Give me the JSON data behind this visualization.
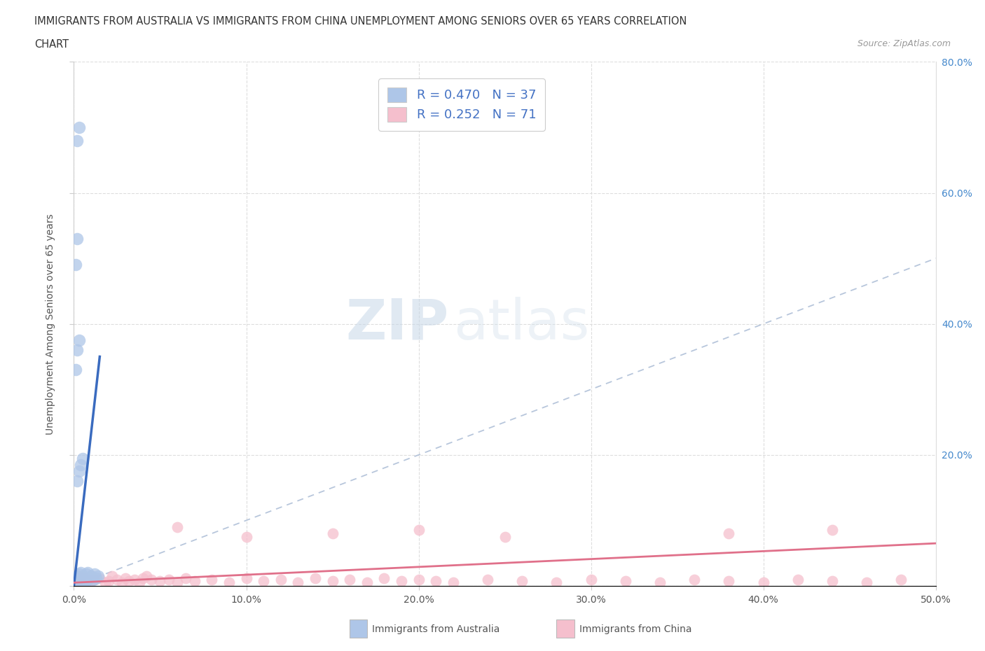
{
  "title_line1": "IMMIGRANTS FROM AUSTRALIA VS IMMIGRANTS FROM CHINA UNEMPLOYMENT AMONG SENIORS OVER 65 YEARS CORRELATION",
  "title_line2": "CHART",
  "source_text": "Source: ZipAtlas.com",
  "ylabel": "Unemployment Among Seniors over 65 years",
  "xlim": [
    0.0,
    0.5
  ],
  "ylim": [
    0.0,
    0.8
  ],
  "xticks": [
    0.0,
    0.1,
    0.2,
    0.3,
    0.4,
    0.5
  ],
  "yticks": [
    0.0,
    0.2,
    0.4,
    0.6,
    0.8
  ],
  "xticklabels": [
    "0.0%",
    "10.0%",
    "20.0%",
    "30.0%",
    "40.0%",
    "50.0%"
  ],
  "yticklabels_right": [
    "",
    "20.0%",
    "40.0%",
    "60.0%",
    "80.0%"
  ],
  "australia_R": 0.47,
  "australia_N": 37,
  "china_R": 0.252,
  "china_N": 71,
  "australia_color": "#aec6e8",
  "australia_edge_color": "#aec6e8",
  "australia_line_color": "#3a6bbf",
  "china_color": "#f5bfcd",
  "china_edge_color": "#f5bfcd",
  "china_line_color": "#e0708a",
  "diag_color": "#b0c0d8",
  "legend_australia_label": "Immigrants from Australia",
  "legend_china_label": "Immigrants from China",
  "watermark_zip": "ZIP",
  "watermark_atlas": "atlas",
  "australia_x": [
    0.001,
    0.001,
    0.001,
    0.002,
    0.002,
    0.002,
    0.003,
    0.003,
    0.003,
    0.004,
    0.004,
    0.004,
    0.005,
    0.005,
    0.006,
    0.006,
    0.007,
    0.007,
    0.008,
    0.008,
    0.009,
    0.01,
    0.011,
    0.012,
    0.013,
    0.014,
    0.002,
    0.003,
    0.004,
    0.005,
    0.001,
    0.002,
    0.003,
    0.001,
    0.002,
    0.002,
    0.003
  ],
  "australia_y": [
    0.005,
    0.008,
    0.012,
    0.005,
    0.01,
    0.015,
    0.008,
    0.012,
    0.018,
    0.005,
    0.01,
    0.02,
    0.008,
    0.015,
    0.005,
    0.012,
    0.008,
    0.018,
    0.01,
    0.02,
    0.012,
    0.015,
    0.01,
    0.018,
    0.012,
    0.015,
    0.16,
    0.175,
    0.185,
    0.195,
    0.33,
    0.36,
    0.375,
    0.49,
    0.53,
    0.68,
    0.7
  ],
  "china_x": [
    0.001,
    0.001,
    0.002,
    0.002,
    0.003,
    0.003,
    0.004,
    0.004,
    0.005,
    0.005,
    0.006,
    0.006,
    0.007,
    0.008,
    0.009,
    0.01,
    0.01,
    0.012,
    0.015,
    0.018,
    0.02,
    0.022,
    0.025,
    0.028,
    0.03,
    0.032,
    0.035,
    0.038,
    0.04,
    0.042,
    0.045,
    0.05,
    0.055,
    0.06,
    0.065,
    0.07,
    0.08,
    0.09,
    0.1,
    0.11,
    0.12,
    0.13,
    0.14,
    0.15,
    0.16,
    0.17,
    0.18,
    0.19,
    0.2,
    0.21,
    0.22,
    0.24,
    0.26,
    0.28,
    0.3,
    0.32,
    0.34,
    0.36,
    0.38,
    0.4,
    0.42,
    0.44,
    0.46,
    0.48,
    0.06,
    0.1,
    0.15,
    0.2,
    0.25,
    0.38,
    0.44
  ],
  "china_y": [
    0.005,
    0.01,
    0.005,
    0.012,
    0.008,
    0.015,
    0.005,
    0.012,
    0.008,
    0.015,
    0.005,
    0.012,
    0.008,
    0.01,
    0.005,
    0.008,
    0.015,
    0.01,
    0.012,
    0.005,
    0.008,
    0.015,
    0.01,
    0.005,
    0.012,
    0.008,
    0.01,
    0.005,
    0.012,
    0.015,
    0.01,
    0.008,
    0.01,
    0.005,
    0.012,
    0.008,
    0.01,
    0.005,
    0.012,
    0.008,
    0.01,
    0.005,
    0.012,
    0.008,
    0.01,
    0.005,
    0.012,
    0.008,
    0.01,
    0.008,
    0.005,
    0.01,
    0.008,
    0.005,
    0.01,
    0.008,
    0.005,
    0.01,
    0.008,
    0.005,
    0.01,
    0.008,
    0.005,
    0.01,
    0.09,
    0.075,
    0.08,
    0.085,
    0.075,
    0.08,
    0.085
  ],
  "aus_trendline_x": [
    0.0,
    0.015
  ],
  "aus_trendline_y": [
    0.0,
    0.35
  ],
  "china_trendline_x": [
    0.0,
    0.5
  ],
  "china_trendline_y": [
    0.005,
    0.065
  ]
}
